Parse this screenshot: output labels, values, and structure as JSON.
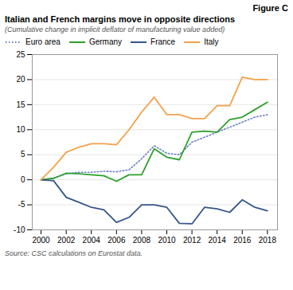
{
  "chart_data": {
    "type": "line",
    "title": "Italian and French margins move in opposite directions",
    "subtitle": "(Cumulative change in implicit deflator of manufacturing value added)",
    "annotations": [
      "Figure C",
      "Source: CSC calculations on Eurostat data."
    ],
    "x": [
      2000,
      2001,
      2002,
      2003,
      2004,
      2005,
      2006,
      2007,
      2008,
      2009,
      2010,
      2011,
      2012,
      2013,
      2014,
      2015,
      2016,
      2017,
      2018
    ],
    "series": [
      {
        "name": "Euro area",
        "color": "#6b7ec4",
        "line_style": "dotted",
        "values": [
          0,
          0.3,
          1.2,
          1.5,
          1.5,
          1.7,
          1.6,
          2.0,
          4.2,
          6.8,
          5.3,
          5.0,
          7.5,
          8.5,
          9.5,
          10.5,
          11.5,
          12.5,
          13.0
        ]
      },
      {
        "name": "Germany",
        "color": "#2ca02c",
        "line_style": "solid",
        "values": [
          0,
          0.3,
          1.3,
          1.2,
          1.0,
          0.8,
          -0.3,
          1.0,
          1.0,
          6.2,
          4.5,
          4.0,
          9.5,
          9.7,
          9.5,
          12.0,
          12.5,
          14.0,
          15.5
        ]
      },
      {
        "name": "France",
        "color": "#34558b",
        "line_style": "solid",
        "values": [
          0,
          -0.2,
          -3.5,
          -4.5,
          -5.5,
          -6.0,
          -8.5,
          -7.5,
          -5.0,
          -5.0,
          -5.5,
          -8.7,
          -8.8,
          -5.5,
          -5.8,
          -6.5,
          -4.0,
          -5.5,
          -6.2
        ]
      },
      {
        "name": "Italy",
        "color": "#f4a14a",
        "line_style": "solid",
        "values": [
          0,
          2.5,
          5.5,
          6.5,
          7.2,
          7.2,
          7.0,
          10.0,
          13.5,
          16.5,
          13.0,
          13.0,
          12.2,
          12.2,
          14.8,
          14.8,
          20.5,
          20.0,
          20.0
        ]
      }
    ],
    "xlim": [
      1999.3,
      2018.8
    ],
    "xticks": [
      2000,
      2002,
      2004,
      2006,
      2008,
      2010,
      2012,
      2014,
      2016,
      2018
    ],
    "ylim": [
      -10,
      25
    ],
    "yticks": [
      -10,
      -5,
      0,
      5,
      10,
      15,
      20,
      25
    ],
    "grid": true,
    "legend": "upper left"
  }
}
